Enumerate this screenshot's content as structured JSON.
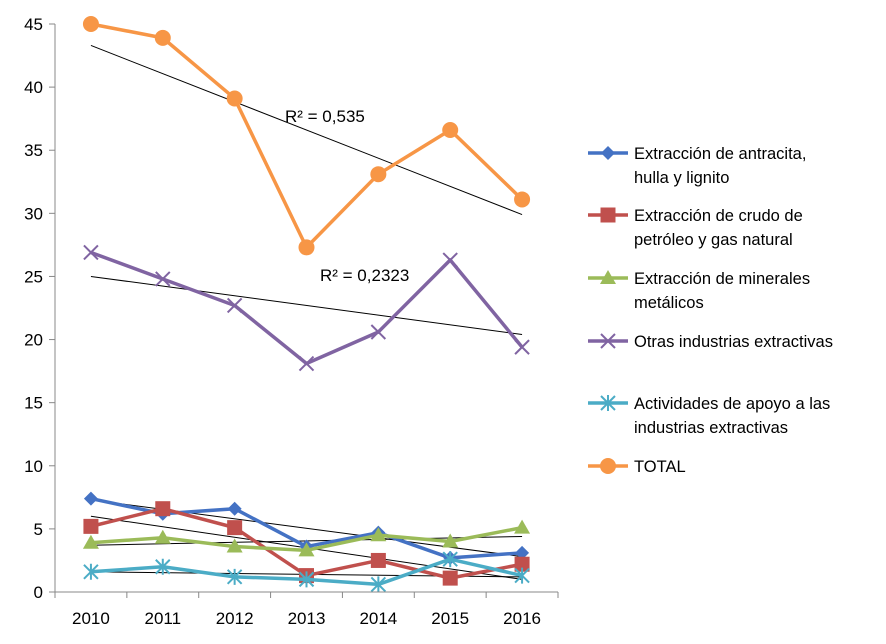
{
  "chart_data": {
    "type": "line",
    "title": "",
    "xlabel": "",
    "ylabel": "",
    "x": [
      "2010",
      "2011",
      "2012",
      "2013",
      "2014",
      "2015",
      "2016"
    ],
    "ylim": [
      0,
      45
    ],
    "yticks": [
      "0",
      "5",
      "10",
      "15",
      "20",
      "25",
      "30",
      "35",
      "40",
      "45"
    ],
    "grid": false,
    "legend_position": "right",
    "series": [
      {
        "key": "antracita",
        "legend_lines": [
          "Extracción de antracita,",
          "hulla y lignito"
        ],
        "color": "#4472C4",
        "marker": "diamond",
        "values": [
          7.4,
          6.2,
          6.6,
          3.6,
          4.7,
          2.7,
          3.1
        ]
      },
      {
        "key": "crudo",
        "legend_lines": [
          "Extracción de crudo de",
          "petróleo y gas natural"
        ],
        "color": "#C0504D",
        "marker": "square",
        "values": [
          5.2,
          6.6,
          5.1,
          1.3,
          2.5,
          1.1,
          2.2
        ]
      },
      {
        "key": "minerales",
        "legend_lines": [
          "Extracción de minerales",
          "metálicos"
        ],
        "color": "#9BBB59",
        "marker": "triangle",
        "values": [
          3.9,
          4.3,
          3.6,
          3.3,
          4.5,
          4.0,
          5.1
        ]
      },
      {
        "key": "otras",
        "legend_lines": [
          "Otras industrias extractivas"
        ],
        "color": "#8064A2",
        "marker": "x",
        "values": [
          26.9,
          24.8,
          22.7,
          18.1,
          20.6,
          26.3,
          19.4
        ]
      },
      {
        "key": "apoyo",
        "legend_lines": [
          "Actividades de apoyo a las",
          "industrias extractivas"
        ],
        "color": "#4BACC6",
        "marker": "star",
        "values": [
          1.6,
          2.0,
          1.2,
          1.0,
          0.6,
          2.6,
          1.3
        ]
      },
      {
        "key": "total",
        "legend_lines": [
          "TOTAL"
        ],
        "color": "#F79646",
        "marker": "circle",
        "values": [
          45.0,
          43.9,
          39.1,
          27.3,
          33.1,
          36.6,
          31.1
        ]
      }
    ],
    "trendlines": [
      {
        "series": "total",
        "start": [
          2010,
          43.3
        ],
        "end": [
          2016,
          29.9
        ]
      },
      {
        "series": "otras",
        "start": [
          2010,
          25.0
        ],
        "end": [
          2016,
          20.4
        ]
      },
      {
        "series": "antracita",
        "start": [
          2010,
          7.3
        ],
        "end": [
          2016,
          2.8
        ]
      },
      {
        "series": "crudo",
        "start": [
          2010,
          6.0
        ],
        "end": [
          2016,
          1.0
        ]
      },
      {
        "series": "minerales",
        "start": [
          2010,
          3.7
        ],
        "end": [
          2016,
          4.4
        ]
      },
      {
        "series": "apoyo",
        "start": [
          2010,
          1.6
        ],
        "end": [
          2016,
          1.2
        ]
      }
    ],
    "annotations": [
      {
        "text": "R² = 0,535",
        "near_series": "total"
      },
      {
        "text": "R² = 0,2323",
        "near_series": "otras"
      }
    ]
  }
}
